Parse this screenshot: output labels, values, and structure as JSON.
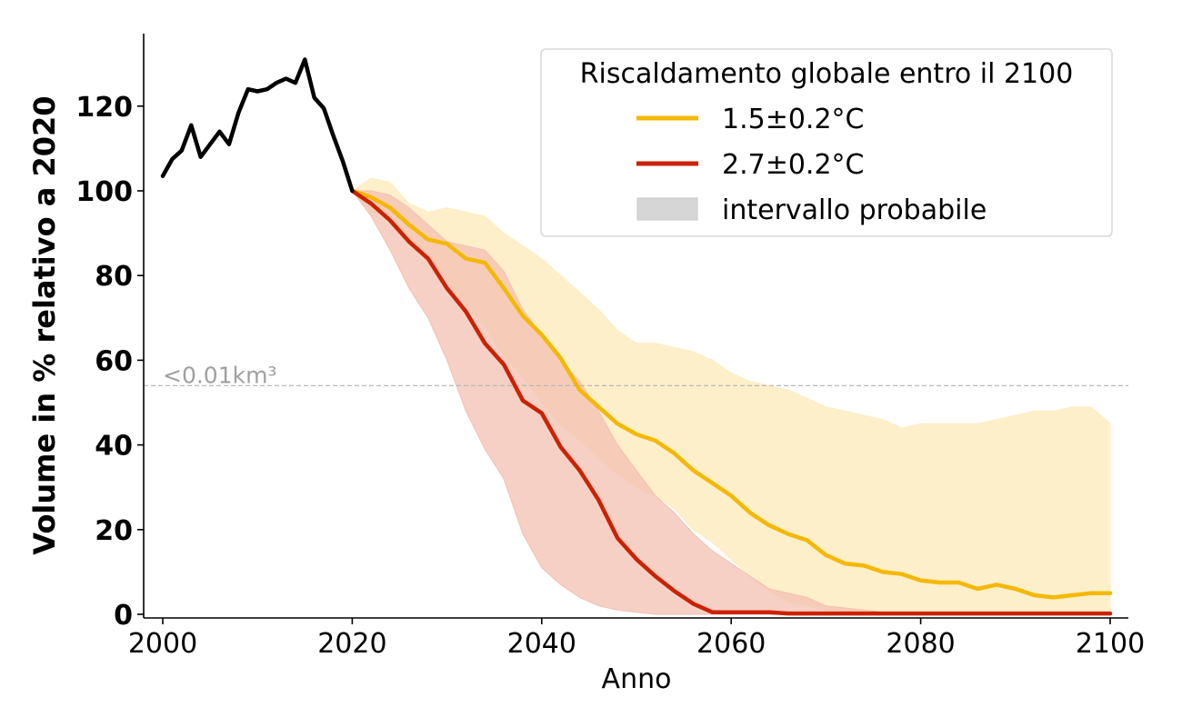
{
  "chart_data": {
    "type": "line",
    "xlabel": "Anno",
    "ylabel": "Volume in % relativo a 2020",
    "xlim": [
      1998,
      2102
    ],
    "ylim": [
      0,
      138
    ],
    "xticks": [
      2000,
      2020,
      2040,
      2060,
      2080,
      2100
    ],
    "yticks": [
      0,
      20,
      40,
      60,
      80,
      100,
      120
    ],
    "grid": false,
    "legend": {
      "title": "Riscaldamento globale entro il 2100",
      "placement": "top-right",
      "entries": [
        {
          "label": "1.5±0.2°C",
          "kind": "line",
          "color": "#f5b800"
        },
        {
          "label": "2.7±0.2°C",
          "kind": "line",
          "color": "#cc2200"
        },
        {
          "label": "intervallo probabile",
          "kind": "patch",
          "color": "#d6d6d6"
        }
      ]
    },
    "annotation": {
      "text": "<0.01km³",
      "y": 54,
      "color": "#a0a0a0"
    },
    "historical": {
      "color": "#000000",
      "x": [
        2000,
        2001,
        2002,
        2003,
        2004,
        2005,
        2006,
        2007,
        2008,
        2009,
        2010,
        2011,
        2012,
        2013,
        2014,
        2015,
        2016,
        2017,
        2018,
        2019,
        2020
      ],
      "y": [
        103.5,
        107.5,
        109.5,
        115.5,
        108,
        111,
        114,
        111,
        118.5,
        124,
        123.5,
        124,
        125.5,
        126.5,
        125.5,
        131,
        122,
        119.5,
        113,
        107,
        100
      ]
    },
    "series": [
      {
        "name": "1.5±0.2°C",
        "color": "#f5b800",
        "band_color": "#fdeec7",
        "x": [
          2020,
          2022,
          2024,
          2026,
          2028,
          2030,
          2032,
          2034,
          2036,
          2038,
          2040,
          2042,
          2044,
          2046,
          2048,
          2050,
          2052,
          2054,
          2056,
          2058,
          2060,
          2062,
          2064,
          2066,
          2068,
          2070,
          2072,
          2074,
          2076,
          2078,
          2080,
          2082,
          2084,
          2086,
          2088,
          2090,
          2092,
          2094,
          2096,
          2098,
          2100
        ],
        "y": [
          100,
          98.5,
          96,
          92,
          88.5,
          87.5,
          84,
          83,
          77,
          70.5,
          66,
          60.5,
          53,
          49,
          45,
          42.5,
          41,
          38,
          34,
          31,
          28,
          24,
          21,
          19,
          17.5,
          14,
          12,
          11.5,
          10,
          9.5,
          8,
          7.5,
          7.5,
          6,
          7,
          6,
          4.5,
          4,
          4.5,
          5,
          5
        ],
        "upper": [
          100,
          103,
          102,
          97,
          95,
          96,
          95,
          94,
          90,
          87,
          84,
          80,
          76,
          72,
          67,
          64,
          64,
          63,
          62,
          60,
          57,
          55,
          54,
          53,
          51,
          49,
          48,
          47,
          46,
          44,
          45,
          45,
          45,
          45,
          46,
          47,
          48,
          48,
          49,
          49,
          45
        ],
        "lower": [
          100,
          95,
          94,
          88,
          85,
          79,
          73,
          68,
          61,
          56,
          50,
          45,
          41,
          37,
          33,
          30,
          28,
          25,
          20,
          17,
          13,
          9,
          5.5,
          3,
          2,
          1,
          0.5,
          0.2,
          0,
          0,
          0,
          0,
          0,
          0,
          0,
          0,
          0,
          0,
          0,
          0,
          0
        ]
      },
      {
        "name": "2.7±0.2°C",
        "color": "#cc2200",
        "band_color": "#f3c0b2",
        "x": [
          2020,
          2022,
          2024,
          2026,
          2028,
          2030,
          2032,
          2034,
          2036,
          2038,
          2040,
          2042,
          2044,
          2046,
          2048,
          2050,
          2052,
          2054,
          2056,
          2058,
          2060,
          2062,
          2064,
          2066,
          2068,
          2070,
          2072,
          2074,
          2076,
          2078,
          2080,
          2082,
          2084,
          2086,
          2088,
          2090,
          2092,
          2094,
          2096,
          2098,
          2100
        ],
        "y": [
          100,
          97,
          93,
          88,
          84,
          77,
          71.5,
          64,
          59,
          50.5,
          47.5,
          39.5,
          34,
          27,
          18,
          13,
          9,
          5.5,
          2.5,
          0.5,
          0.5,
          0.5,
          0.5,
          0.2,
          0.2,
          0.2,
          0.2,
          0.2,
          0.2,
          0.2,
          0.2,
          0.2,
          0.2,
          0.2,
          0.2,
          0.2,
          0.2,
          0.2,
          0.2,
          0.2,
          0.2
        ],
        "upper": [
          100,
          100,
          99,
          96,
          92,
          88,
          87,
          86,
          81,
          72,
          66,
          60,
          55,
          48,
          40,
          34,
          28,
          24,
          19,
          15,
          12,
          9,
          6,
          5,
          4,
          2,
          1.5,
          1,
          0.5,
          0,
          0,
          0,
          0,
          0,
          0,
          0,
          0,
          0,
          0,
          0,
          0
        ],
        "lower": [
          100,
          94,
          86,
          77,
          70,
          60,
          48,
          39,
          32,
          19,
          11,
          7,
          4,
          2,
          1,
          0.5,
          0,
          0,
          0,
          0,
          0,
          0,
          0,
          0,
          0,
          0,
          0,
          0,
          0,
          0,
          0,
          0,
          0,
          0,
          0,
          0,
          0,
          0,
          0,
          0,
          0
        ]
      }
    ]
  }
}
